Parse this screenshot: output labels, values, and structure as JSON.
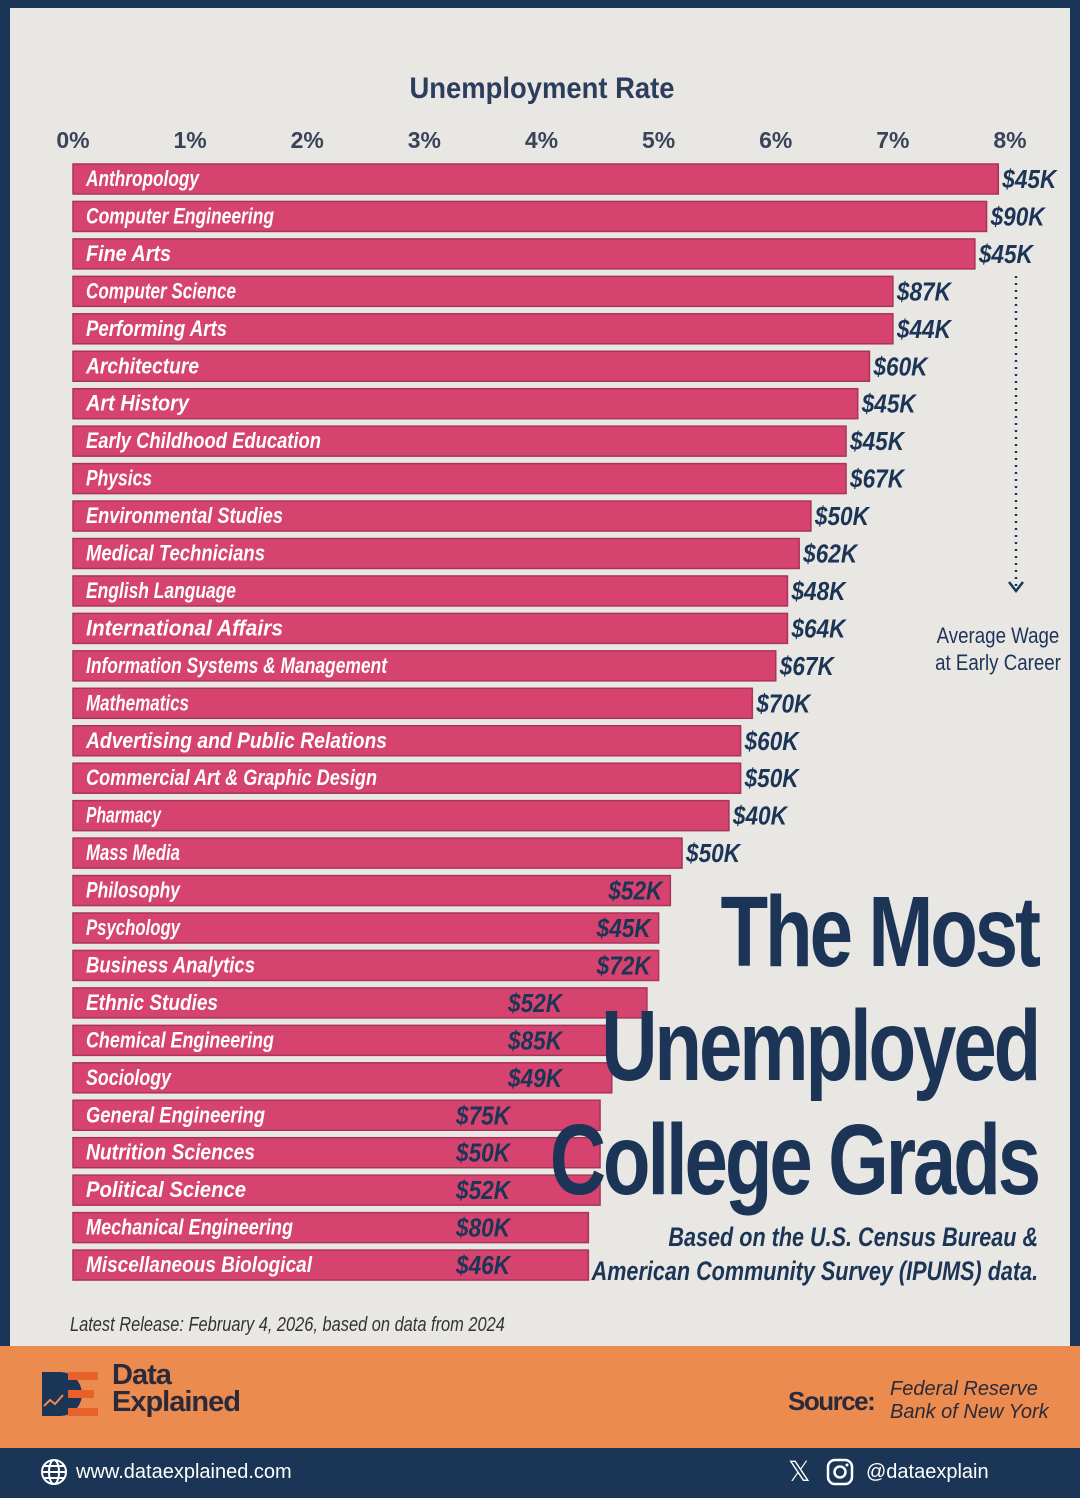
{
  "chart_data": {
    "type": "bar",
    "orientation": "horizontal",
    "title": "Unemployment Rate",
    "xlim": [
      0,
      8
    ],
    "x_ticks": [
      "0%",
      "1%",
      "2%",
      "3%",
      "4%",
      "5%",
      "6%",
      "7%",
      "8%"
    ],
    "grid": false,
    "bar_color": "#d6436f",
    "categories": [
      "Anthropology",
      "Computer Engineering",
      "Fine Arts",
      "Computer Science",
      "Performing Arts",
      "Architecture",
      "Art History",
      "Early Childhood Education",
      "Physics",
      "Environmental Studies",
      "Medical Technicians",
      "English Language",
      "International Affairs",
      "Information Systems & Management",
      "Mathematics",
      "Advertising and Public Relations",
      "Commercial Art & Graphic Design",
      "Pharmacy",
      "Mass Media",
      "Philosophy",
      "Psychology",
      "Business Analytics",
      "Ethnic Studies",
      "Chemical Engineering",
      "Sociology",
      "General Engineering",
      "Nutrition Sciences",
      "Political Science",
      "Mechanical Engineering",
      "Miscellaneous Biological"
    ],
    "values": [
      7.9,
      7.8,
      7.7,
      7.0,
      7.0,
      6.8,
      6.7,
      6.6,
      6.6,
      6.3,
      6.2,
      6.1,
      6.1,
      6.0,
      5.8,
      5.7,
      5.7,
      5.6,
      5.2,
      5.1,
      5.0,
      5.0,
      4.9,
      4.6,
      4.6,
      4.5,
      4.5,
      4.5,
      4.4,
      4.4
    ],
    "wage_labels": [
      "$45K",
      "$90K",
      "$45K",
      "$87K",
      "$44K",
      "$60K",
      "$45K",
      "$45K",
      "$67K",
      "$50K",
      "$62K",
      "$48K",
      "$64K",
      "$67K",
      "$70K",
      "$60K",
      "$50K",
      "$40K",
      "$50K",
      "$52K",
      "$45K",
      "$72K",
      "$52K",
      "$85K",
      "$49K",
      "$75K",
      "$50K",
      "$52K",
      "$80K",
      "$46K"
    ],
    "annotation": [
      "Average Wage",
      "at Early Career"
    ]
  },
  "title_lines": [
    "The Most",
    "Unemployed",
    "College Grads"
  ],
  "subtitle_lines": [
    "Based on the U.S. Census Bureau &",
    "American Community Survey (IPUMS) data."
  ],
  "release_note": "Latest Release: February 4, 2026, based on data from 2024",
  "brand": {
    "line1": "Data",
    "line2": "Explained"
  },
  "source": {
    "label": "Source:",
    "line1": "Federal Reserve",
    "line2": "Bank of New York"
  },
  "footer": {
    "website": "www.dataexplained.com",
    "handle": "@dataexplain"
  },
  "colors": {
    "navy": "#1b3556",
    "orange": "#ec8b4f",
    "bar": "#d6436f",
    "background": "#e9e7e4"
  }
}
